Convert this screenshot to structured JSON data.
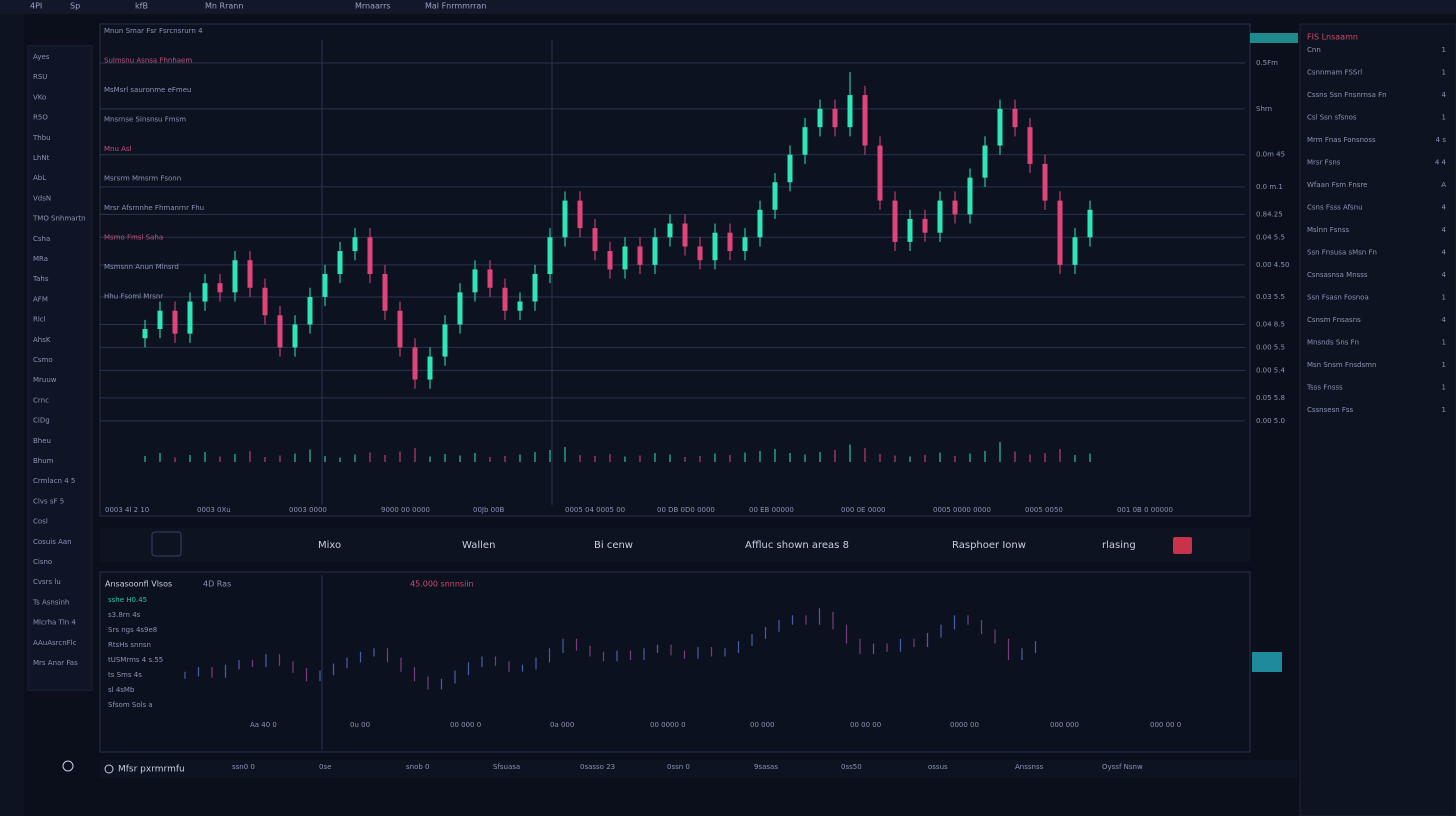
{
  "top_bar": {
    "items": [
      "4PI",
      "Sp",
      "kfB",
      "Mn Rrann",
      "Mrnaarrs",
      "Mal Fnrmmrran"
    ]
  },
  "watchlist": [
    "Ayes",
    "RSU",
    "VKo",
    "R5O",
    "Thbu",
    "LhNt",
    "AbL",
    "VdsN",
    "TMO Snhmartn",
    "Csha",
    "MRa",
    "Tahs",
    "AFM",
    "Rlcl",
    "AhsK",
    "Csmo",
    "Mruuw",
    "Crnc",
    "CiDg",
    "Bheu",
    "Bhum",
    "Crmlacn 4 5",
    "Clvs sF 5",
    "Cosl",
    "Cosuis Aan",
    "Cisno",
    "Cvsrs lu",
    "Ts Asnsinh",
    "Mlcrha Tln 4",
    "AAuAsrcnFlc",
    "Mrs Anar Fas"
  ],
  "main_chart": {
    "legend": [
      "Mnun Smar Fsr Fsrcnsrurn 4",
      "Sulmsnu Asnsa Fhnhaem",
      "MsMsrl sauronme eFmeu",
      "Mnsrnse Sinsnsu Fmsm",
      "Mnu Asl",
      "Msrsrm Mmsrm Fsonn",
      "Mrsr Afsrnnhe Fhmanrnr Fhu",
      "Msmo Fmsl Saha",
      "Msmsnn Anun Mlnsrd",
      "Hhu Fsoml Mrsnr"
    ],
    "up_color": "#2ee6b8",
    "down_color": "#e0457a",
    "ylim": [
      110,
      195
    ],
    "yticks": [
      {
        "value": 190,
        "label": "0.5Fm"
      },
      {
        "value": 180,
        "label": "Shrn"
      },
      {
        "value": 170,
        "label": "0.0m 45"
      },
      {
        "value": 163,
        "label": "0.0 m.1"
      },
      {
        "value": 157,
        "label": "0.84.25"
      },
      {
        "value": 152,
        "label": "0.04 5.5"
      },
      {
        "value": 146,
        "label": "0.00 4.50"
      },
      {
        "value": 139,
        "label": "0.03 5.5"
      },
      {
        "value": 133,
        "label": "0.04 8.5"
      },
      {
        "value": 128,
        "label": "0.00 5.5"
      },
      {
        "value": 123,
        "label": "0.00 5.4"
      },
      {
        "value": 117,
        "label": "0.05 5.8"
      },
      {
        "value": 112,
        "label": "0.00 5.0"
      }
    ],
    "candles": [
      [
        130,
        134,
        128,
        132
      ],
      [
        132,
        138,
        130,
        136
      ],
      [
        136,
        138,
        129,
        131
      ],
      [
        131,
        140,
        129,
        138
      ],
      [
        138,
        144,
        136,
        142
      ],
      [
        142,
        144,
        138,
        140
      ],
      [
        140,
        149,
        138,
        147
      ],
      [
        147,
        149,
        139,
        141
      ],
      [
        141,
        143,
        133,
        135
      ],
      [
        135,
        137,
        126,
        128
      ],
      [
        128,
        135,
        126,
        133
      ],
      [
        133,
        141,
        131,
        139
      ],
      [
        139,
        146,
        137,
        144
      ],
      [
        144,
        151,
        142,
        149
      ],
      [
        149,
        154,
        147,
        152
      ],
      [
        152,
        154,
        142,
        144
      ],
      [
        144,
        146,
        134,
        136
      ],
      [
        136,
        138,
        126,
        128
      ],
      [
        128,
        130,
        119,
        121
      ],
      [
        121,
        128,
        119,
        126
      ],
      [
        126,
        135,
        124,
        133
      ],
      [
        133,
        142,
        131,
        140
      ],
      [
        140,
        147,
        138,
        145
      ],
      [
        145,
        147,
        139,
        141
      ],
      [
        141,
        143,
        134,
        136
      ],
      [
        136,
        140,
        134,
        138
      ],
      [
        138,
        146,
        136,
        144
      ],
      [
        144,
        154,
        142,
        152
      ],
      [
        152,
        162,
        150,
        160
      ],
      [
        160,
        162,
        152,
        154
      ],
      [
        154,
        156,
        147,
        149
      ],
      [
        149,
        151,
        143,
        145
      ],
      [
        145,
        152,
        143,
        150
      ],
      [
        150,
        152,
        144,
        146
      ],
      [
        146,
        154,
        144,
        152
      ],
      [
        152,
        157,
        150,
        155
      ],
      [
        155,
        157,
        148,
        150
      ],
      [
        150,
        152,
        145,
        147
      ],
      [
        147,
        155,
        145,
        153
      ],
      [
        153,
        155,
        147,
        149
      ],
      [
        149,
        154,
        147,
        152
      ],
      [
        152,
        160,
        150,
        158
      ],
      [
        158,
        166,
        156,
        164
      ],
      [
        164,
        172,
        162,
        170
      ],
      [
        170,
        178,
        168,
        176
      ],
      [
        176,
        182,
        174,
        180
      ],
      [
        180,
        182,
        174,
        176
      ],
      [
        176,
        188,
        174,
        183
      ],
      [
        183,
        185,
        170,
        172
      ],
      [
        172,
        174,
        158,
        160
      ],
      [
        160,
        162,
        149,
        151
      ],
      [
        151,
        158,
        149,
        156
      ],
      [
        156,
        158,
        151,
        153
      ],
      [
        153,
        162,
        151,
        160
      ],
      [
        160,
        162,
        155,
        157
      ],
      [
        157,
        167,
        155,
        165
      ],
      [
        165,
        174,
        163,
        172
      ],
      [
        172,
        182,
        170,
        180
      ],
      [
        180,
        182,
        174,
        176
      ],
      [
        176,
        178,
        166,
        168
      ],
      [
        168,
        170,
        158,
        160
      ],
      [
        160,
        162,
        144,
        146
      ],
      [
        146,
        154,
        144,
        152
      ],
      [
        152,
        160,
        150,
        158
      ]
    ],
    "volumes": [
      12,
      18,
      9,
      14,
      20,
      11,
      16,
      22,
      10,
      13,
      17,
      25,
      12,
      9,
      15,
      19,
      14,
      21,
      28,
      11,
      16,
      13,
      18,
      10,
      12,
      15,
      20,
      24,
      30,
      14,
      12,
      16,
      11,
      13,
      18,
      15,
      10,
      12,
      17,
      14,
      19,
      22,
      26,
      18,
      15,
      20,
      24,
      35,
      28,
      16,
      13,
      11,
      14,
      19,
      12,
      17,
      22,
      40,
      21,
      15,
      18,
      26,
      14,
      17
    ],
    "dates": [
      "0003 4l 2 10",
      "0003 0Xu",
      "0003 0000",
      "9000 00 0000",
      "00Jb 00B",
      "0005 04 0005 00",
      "00 DB 0D0 0000",
      "00 EB 00000",
      "000 0E 0000",
      "0005 0000 0000",
      "0005 0050",
      "001 0B 0 00000"
    ]
  },
  "tabs": [
    "Mixo",
    "Wallen",
    "Bi cenw",
    "Affluc shown areas 8",
    "Rasphoer Ionw",
    "rlasing"
  ],
  "lower_chart": {
    "title": "Ansasoonfl Vlsos",
    "tag": "4D Ras",
    "legend": [
      "45.000 snnnsiin"
    ],
    "labels": [
      "sshe H0.45",
      "s3.8rn 4s",
      "Srs ngs 4s9e8",
      "RtsHs snnsn",
      "tUSMrms 4 s.55",
      "ts Sms 4s",
      "sl 4sMb",
      "Sfsom Sols a"
    ],
    "dates": [
      "Aa 40 0",
      "0u 00",
      "00 000 0",
      "0a 000",
      "00 0000 0",
      "00 000",
      "00 00 00",
      "0000 00",
      "000 000",
      "000 00 0"
    ]
  },
  "bottom_bar": {
    "title": "Mfsr pxrmrmfu",
    "items": [
      "ssn0 0",
      "0se",
      "snob 0",
      "Sfsuasa",
      "0sasso 23",
      "0ssn 0",
      "9sasas",
      "0ss50",
      "ossus",
      "Anssnss",
      "Oyssf Nsnw"
    ]
  },
  "right_panel": {
    "header": "FIS Lnsaamn",
    "rows": [
      [
        "Cnn",
        "1"
      ],
      [
        "Csnnmam FSSrl",
        "1"
      ],
      [
        "Cssns Ssn Fnsnrnsa Fn",
        "4"
      ],
      [
        "Csl Ssn sfsnos",
        "1"
      ],
      [
        "Mrm Fnas Fonsnoss",
        "4 s"
      ],
      [
        "Mrsr Fsns",
        "4 4"
      ],
      [
        "Wfaan Fsm Fnsre",
        "A"
      ],
      [
        "Csns Fsss Afsnu",
        "4"
      ],
      [
        "Mslnn Fsnss",
        "4"
      ],
      [
        "Ssn Fnsusa sMsn Fn",
        "4"
      ],
      [
        "Csnsasnsa Mnsss",
        "4"
      ],
      [
        "Ssn Fsasn Fosnoa",
        "1"
      ],
      [
        "Csnsm Fnsasns",
        "4"
      ],
      [
        "Mnsnds Sns Fn",
        "1"
      ],
      [
        "Msn Snsm Fnsdsmn",
        "1"
      ],
      [
        "Tsss Fnsss",
        "1"
      ],
      [
        "Cssnsesn Fss",
        "1"
      ]
    ]
  }
}
